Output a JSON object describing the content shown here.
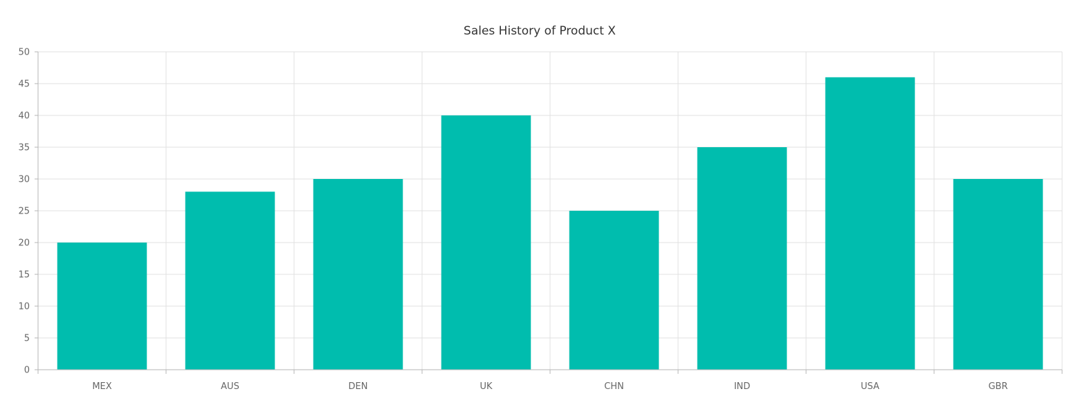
{
  "chart_data": {
    "type": "bar",
    "title": "Sales History of Product X",
    "xlabel": "",
    "ylabel": "",
    "categories": [
      "MEX",
      "AUS",
      "DEN",
      "UK",
      "CHN",
      "IND",
      "USA",
      "GBR"
    ],
    "values": [
      20,
      28,
      30,
      40,
      25,
      35,
      46,
      30
    ],
    "ylim": [
      0,
      50
    ],
    "yticks": [
      0,
      5,
      10,
      15,
      20,
      25,
      30,
      35,
      40,
      45,
      50
    ],
    "ytick_labels": [
      "0",
      "5",
      "10",
      "15",
      "20",
      "25",
      "30",
      "35",
      "40",
      "45",
      "50"
    ],
    "grid": true,
    "legend": "none",
    "bar_color": "#00BDAE",
    "grid_color": "#E0E0E0",
    "axis_color": "#B5B5B5",
    "text_color": "#666666",
    "title_color": "#333333"
  }
}
